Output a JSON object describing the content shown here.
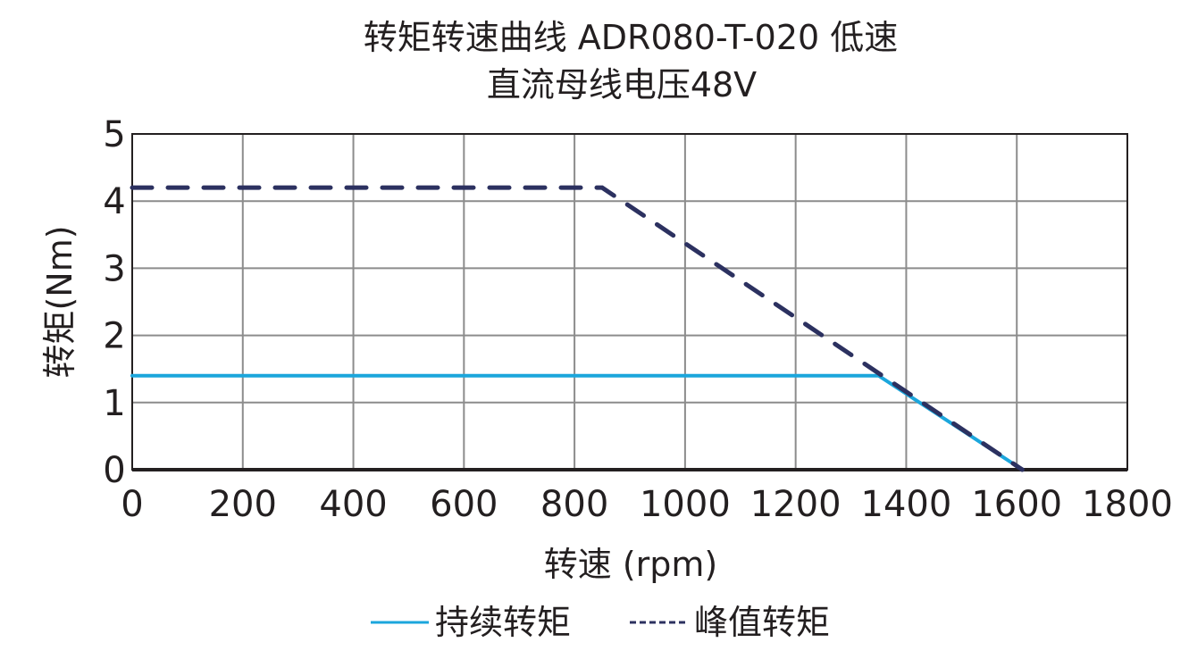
{
  "chart_data": {
    "type": "line",
    "title": "转矩转速曲线 ADR080-T-020 低速",
    "subtitle": "直流母线电压48V",
    "xlabel": "转速 (rpm)",
    "ylabel": "转矩(Nm)",
    "xlim": [
      0,
      1800
    ],
    "ylim": [
      0,
      5
    ],
    "xticks": [
      "0",
      "200",
      "400",
      "600",
      "800",
      "1000",
      "1200",
      "1400",
      "1600",
      "1800"
    ],
    "yticks": [
      "0",
      "1",
      "2",
      "3",
      "4",
      "5"
    ],
    "grid": true,
    "legend_position": "bottom",
    "series": [
      {
        "name": "持续转矩",
        "style": "solid",
        "color": "#1ba6dc",
        "x": [
          0,
          1350,
          1610
        ],
        "y": [
          1.4,
          1.4,
          0
        ]
      },
      {
        "name": "峰值转矩",
        "style": "dashed",
        "color": "#2c3160",
        "x": [
          0,
          850,
          1610
        ],
        "y": [
          4.2,
          4.2,
          0
        ]
      }
    ]
  }
}
